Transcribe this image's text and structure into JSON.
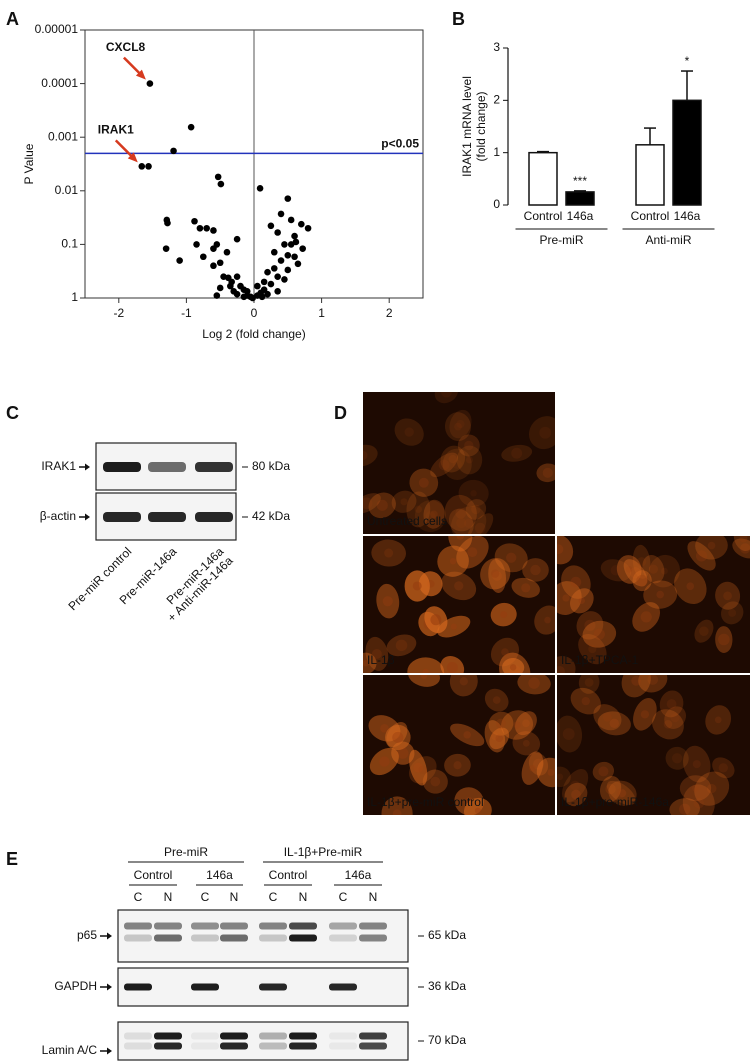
{
  "figure": {
    "panel_labels": [
      "A",
      "B",
      "C",
      "D",
      "E"
    ]
  },
  "chart_data": [
    {
      "type": "scatter",
      "x": [
        -1.54,
        -1.66,
        -1.56,
        -0.93,
        -1.19,
        -0.53,
        -0.49,
        -1.29,
        -1.28,
        -1.3,
        -1.1,
        -0.88,
        -0.8,
        -0.7,
        -0.6,
        -0.55,
        -0.85,
        -0.75,
        -0.6,
        -0.4,
        -0.25,
        -0.5,
        -0.6,
        -0.45,
        -0.38,
        -0.33,
        -0.25,
        -0.35,
        -0.5,
        -0.2,
        -0.15,
        -0.1,
        -0.3,
        -0.55,
        -0.1,
        -0.05,
        -0.15,
        -0.02,
        -0.25,
        0.09,
        0.5,
        0.4,
        0.25,
        0.55,
        0.8,
        0.7,
        0.6,
        0.35,
        0.45,
        0.3,
        0.55,
        0.62,
        0.72,
        0.5,
        0.6,
        0.4,
        0.65,
        0.3,
        0.5,
        0.2,
        0.35,
        0.45,
        0.15,
        0.25,
        0.05,
        0.15,
        0.35,
        0.1,
        0.2,
        0.05,
        0.12
      ],
      "values": [
        0.0001,
        0.0035,
        0.0035,
        0.00065,
        0.0018,
        0.0055,
        0.0075,
        0.035,
        0.04,
        0.12,
        0.2,
        0.037,
        0.05,
        0.05,
        0.055,
        0.1,
        0.1,
        0.17,
        0.12,
        0.14,
        0.08,
        0.22,
        0.25,
        0.4,
        0.42,
        0.5,
        0.4,
        0.6,
        0.65,
        0.6,
        0.7,
        0.75,
        0.75,
        0.9,
        0.9,
        0.95,
        0.95,
        1,
        0.85,
        0.009,
        0.014,
        0.027,
        0.045,
        0.035,
        0.05,
        0.042,
        0.07,
        0.06,
        0.1,
        0.14,
        0.1,
        0.09,
        0.12,
        0.16,
        0.17,
        0.2,
        0.23,
        0.28,
        0.3,
        0.33,
        0.4,
        0.45,
        0.5,
        0.55,
        0.6,
        0.7,
        0.75,
        0.8,
        0.85,
        0.9,
        0.95
      ],
      "color": "#000000",
      "xlim": [
        -2.5,
        2.5
      ],
      "xticks": [
        -2,
        -1,
        0,
        1,
        2
      ],
      "ylim": [
        1,
        1e-05
      ],
      "yticks": [
        1,
        0.1,
        0.01,
        0.001,
        0.0001,
        1e-05
      ],
      "y_scale": "log",
      "xlabel": "Log 2 (fold change)",
      "ylabel": "P Value",
      "threshold": {
        "value": 0.002,
        "label": "p<0.05",
        "color": "#2233bb"
      },
      "annotations": [
        {
          "text": "CXCL8",
          "x": -1.54,
          "y": 0.0001,
          "color": "#d63a1f"
        },
        {
          "text": "IRAK1",
          "x": -1.66,
          "y": 0.0035,
          "color": "#d63a1f"
        }
      ]
    },
    {
      "type": "bar",
      "categories": [
        "Control",
        "146a",
        "Control",
        "146a"
      ],
      "groups": [
        "Pre-miR",
        "Anti-miR"
      ],
      "values": [
        1.0,
        0.25,
        1.15,
        2.0
      ],
      "errors": [
        0.02,
        0.02,
        0.32,
        0.56
      ],
      "colors": [
        "#ffffff",
        "#000000",
        "#ffffff",
        "#000000"
      ],
      "significance": [
        null,
        "***",
        null,
        "*"
      ],
      "ylim": [
        0,
        3
      ],
      "yticks": [
        0,
        1,
        2,
        3
      ],
      "ylabel": [
        "IRAK1 mRNA level",
        "(fold change)"
      ]
    }
  ],
  "blot_c": {
    "rows": [
      {
        "label": "IRAK1",
        "size": "80 kDa"
      },
      {
        "label": "β-actin",
        "size": "42 kDa"
      }
    ],
    "lanes": [
      "Pre-miR control",
      "Pre-miR-146a",
      [
        "Pre-miR-146a",
        "+ Anti-miR-146a"
      ]
    ]
  },
  "images_d": [
    "Untreated cells",
    "IL-1β",
    "IL-1β+TPCA-1",
    "IL-1β+pre-miR control",
    "IL-1β+pre-miR-146a"
  ],
  "blot_e": {
    "groups": [
      {
        "label": "Pre-miR",
        "sub": [
          "Control",
          "146a"
        ]
      },
      {
        "label": "IL-1β+Pre-miR",
        "sub": [
          "Control",
          "146a"
        ]
      }
    ],
    "fractions": [
      "C",
      "N",
      "C",
      "N",
      "C",
      "N",
      "C",
      "N"
    ],
    "rows": [
      {
        "label": "p65",
        "size": "65 kDa"
      },
      {
        "label": "GAPDH",
        "size": "36 kDa"
      },
      {
        "label": "Lamin A/C",
        "size": "70 kDa"
      }
    ]
  }
}
